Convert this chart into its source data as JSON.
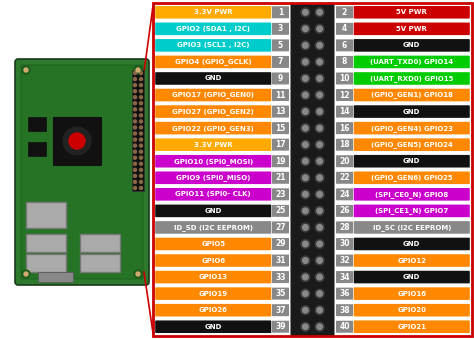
{
  "background": "#ffffff",
  "border_color": "#cc0000",
  "left_pins": [
    {
      "num": 1,
      "label": "3.3V PWR",
      "color": "#ffaa00"
    },
    {
      "num": 3,
      "label": "GPIO2 (SDA1 , I2C)",
      "color": "#00cccc"
    },
    {
      "num": 5,
      "label": "GPIO3 (SCL1 , I2C)",
      "color": "#00cccc"
    },
    {
      "num": 7,
      "label": "GPIO4 (GPIO_GCLK)",
      "color": "#ff8800"
    },
    {
      "num": 9,
      "label": "GND",
      "color": "#111111"
    },
    {
      "num": 11,
      "label": "GPIO17 (GPIO_GEN0)",
      "color": "#ff8800"
    },
    {
      "num": 13,
      "label": "GPIO27 (GPIO_GEN2)",
      "color": "#ff8800"
    },
    {
      "num": 15,
      "label": "GPIO22 (GPIO_GEN3)",
      "color": "#ff8800"
    },
    {
      "num": 17,
      "label": "3.3V PWR",
      "color": "#ffaa00"
    },
    {
      "num": 19,
      "label": "GPIO10 (SPI0_MOSI)",
      "color": "#cc00cc"
    },
    {
      "num": 21,
      "label": "GPIO9 (SPI0_MISO)",
      "color": "#cc00cc"
    },
    {
      "num": 23,
      "label": "GPIO11 (SPI0- CLK)",
      "color": "#cc00cc"
    },
    {
      "num": 25,
      "label": "GND",
      "color": "#111111"
    },
    {
      "num": 27,
      "label": "ID_SD (I2C EEPROM)",
      "color": "#888888"
    },
    {
      "num": 29,
      "label": "GPIO5",
      "color": "#ff8800"
    },
    {
      "num": 31,
      "label": "GPIO6",
      "color": "#ff8800"
    },
    {
      "num": 33,
      "label": "GPIO13",
      "color": "#ff8800"
    },
    {
      "num": 35,
      "label": "GPIO19",
      "color": "#ff8800"
    },
    {
      "num": 37,
      "label": "GPIO26",
      "color": "#ff8800"
    },
    {
      "num": 39,
      "label": "GND",
      "color": "#111111"
    }
  ],
  "right_pins": [
    {
      "num": 2,
      "label": "5V PWR",
      "color": "#cc0000"
    },
    {
      "num": 4,
      "label": "5V PWR",
      "color": "#cc0000"
    },
    {
      "num": 6,
      "label": "GND",
      "color": "#111111"
    },
    {
      "num": 8,
      "label": "(UART_TXD0) GPIO14",
      "color": "#00cc00"
    },
    {
      "num": 10,
      "label": "(UART_RXD0) GPIO15",
      "color": "#00cc00"
    },
    {
      "num": 12,
      "label": "(GPIO_GEN1) GPIO18",
      "color": "#ff8800"
    },
    {
      "num": 14,
      "label": "GND",
      "color": "#111111"
    },
    {
      "num": 16,
      "label": "(GPIO_GEN4) GPIO23",
      "color": "#ff8800"
    },
    {
      "num": 18,
      "label": "(GPIO_GEN5) GPIO24",
      "color": "#ff8800"
    },
    {
      "num": 20,
      "label": "GND",
      "color": "#111111"
    },
    {
      "num": 22,
      "label": "(GPIO_GEN6) GPIO25",
      "color": "#ff8800"
    },
    {
      "num": 24,
      "label": "(SPI_CE0_N) GPIO8",
      "color": "#cc00cc"
    },
    {
      "num": 26,
      "label": "(SPI_CE1_N) GPIO7",
      "color": "#cc00cc"
    },
    {
      "num": 28,
      "label": "ID_SC (I2C EEPROM)",
      "color": "#888888"
    },
    {
      "num": 30,
      "label": "GND",
      "color": "#111111"
    },
    {
      "num": 32,
      "label": "GPIO12",
      "color": "#ff8800"
    },
    {
      "num": 34,
      "label": "GND",
      "color": "#111111"
    },
    {
      "num": 36,
      "label": "GPIO16",
      "color": "#ff8800"
    },
    {
      "num": 38,
      "label": "GPIO20",
      "color": "#ff8800"
    },
    {
      "num": 40,
      "label": "GPIO21",
      "color": "#ff8800"
    }
  ],
  "n_rows": 20,
  "fig_w": 4.74,
  "fig_h": 3.39,
  "dpi": 100
}
